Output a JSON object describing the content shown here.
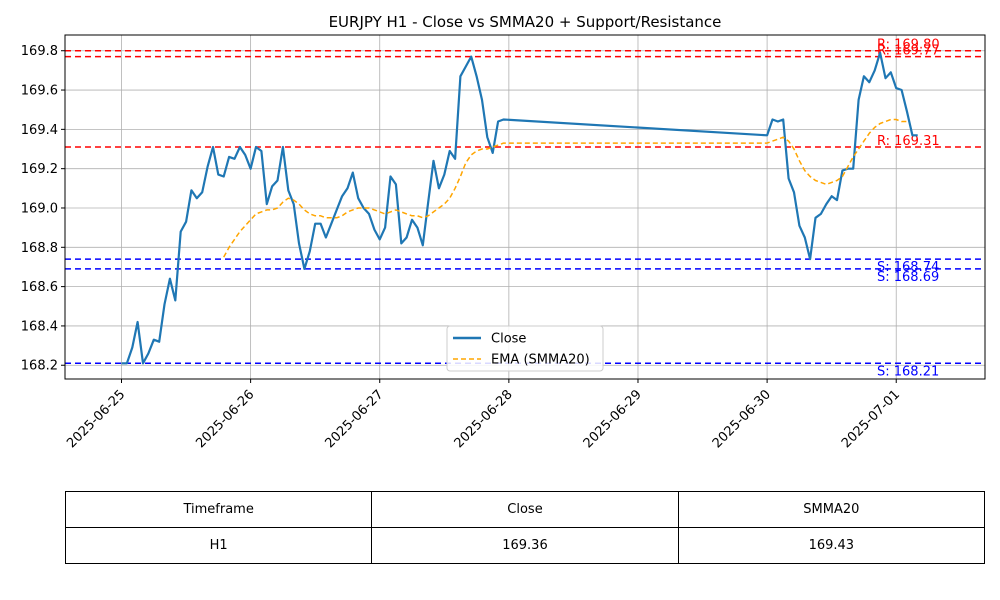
{
  "chart_data": {
    "type": "line",
    "title": "EURJPY H1 - Close vs SMMA20 + Support/Resistance",
    "xlabel": "",
    "ylabel": "",
    "x_ticks": [
      "2025-06-25",
      "2025-06-26",
      "2025-06-27",
      "2025-06-28",
      "2025-06-29",
      "2025-06-30",
      "2025-07-01"
    ],
    "y_ticks": [
      "168.2",
      "168.4",
      "168.6",
      "168.8",
      "169.0",
      "169.2",
      "169.4",
      "169.6",
      "169.8"
    ],
    "xlim": [
      "2025-06-24T13:30",
      "2025-07-01T16:30"
    ],
    "ylim": [
      168.13,
      169.88
    ],
    "grid": true,
    "legend_position": "lower-center",
    "legend": [
      "Close",
      "EMA (SMMA20)"
    ],
    "series": [
      {
        "name": "Close",
        "color": "#1f77b4",
        "style": "solid",
        "points": [
          [
            "2025-06-25T00:00",
            168.21
          ],
          [
            "2025-06-25T01:00",
            168.21
          ],
          [
            "2025-06-25T02:00",
            168.29
          ],
          [
            "2025-06-25T03:00",
            168.42
          ],
          [
            "2025-06-25T04:00",
            168.21
          ],
          [
            "2025-06-25T05:00",
            168.26
          ],
          [
            "2025-06-25T06:00",
            168.33
          ],
          [
            "2025-06-25T07:00",
            168.32
          ],
          [
            "2025-06-25T08:00",
            168.51
          ],
          [
            "2025-06-25T09:00",
            168.64
          ],
          [
            "2025-06-25T10:00",
            168.53
          ],
          [
            "2025-06-25T11:00",
            168.88
          ],
          [
            "2025-06-25T12:00",
            168.93
          ],
          [
            "2025-06-25T13:00",
            169.09
          ],
          [
            "2025-06-25T14:00",
            169.05
          ],
          [
            "2025-06-25T15:00",
            169.08
          ],
          [
            "2025-06-25T16:00",
            169.21
          ],
          [
            "2025-06-25T17:00",
            169.31
          ],
          [
            "2025-06-25T18:00",
            169.17
          ],
          [
            "2025-06-25T19:00",
            169.16
          ],
          [
            "2025-06-25T20:00",
            169.26
          ],
          [
            "2025-06-25T21:00",
            169.25
          ],
          [
            "2025-06-25T22:00",
            169.31
          ],
          [
            "2025-06-25T23:00",
            169.27
          ],
          [
            "2025-06-26T00:00",
            169.2
          ],
          [
            "2025-06-26T01:00",
            169.31
          ],
          [
            "2025-06-26T02:00",
            169.29
          ],
          [
            "2025-06-26T03:00",
            169.02
          ],
          [
            "2025-06-26T04:00",
            169.11
          ],
          [
            "2025-06-26T05:00",
            169.14
          ],
          [
            "2025-06-26T06:00",
            169.31
          ],
          [
            "2025-06-26T07:00",
            169.09
          ],
          [
            "2025-06-26T08:00",
            169.02
          ],
          [
            "2025-06-26T09:00",
            168.82
          ],
          [
            "2025-06-26T10:00",
            168.69
          ],
          [
            "2025-06-26T11:00",
            168.78
          ],
          [
            "2025-06-26T12:00",
            168.92
          ],
          [
            "2025-06-26T13:00",
            168.92
          ],
          [
            "2025-06-26T14:00",
            168.85
          ],
          [
            "2025-06-26T15:00",
            168.92
          ],
          [
            "2025-06-26T16:00",
            168.99
          ],
          [
            "2025-06-26T17:00",
            169.06
          ],
          [
            "2025-06-26T18:00",
            169.1
          ],
          [
            "2025-06-26T19:00",
            169.18
          ],
          [
            "2025-06-26T20:00",
            169.05
          ],
          [
            "2025-06-26T21:00",
            169.0
          ],
          [
            "2025-06-26T22:00",
            168.97
          ],
          [
            "2025-06-26T23:00",
            168.89
          ],
          [
            "2025-06-27T00:00",
            168.84
          ],
          [
            "2025-06-27T01:00",
            168.9
          ],
          [
            "2025-06-27T02:00",
            169.16
          ],
          [
            "2025-06-27T03:00",
            169.12
          ],
          [
            "2025-06-27T04:00",
            168.82
          ],
          [
            "2025-06-27T05:00",
            168.85
          ],
          [
            "2025-06-27T06:00",
            168.94
          ],
          [
            "2025-06-27T07:00",
            168.9
          ],
          [
            "2025-06-27T08:00",
            168.81
          ],
          [
            "2025-06-27T09:00",
            169.03
          ],
          [
            "2025-06-27T10:00",
            169.24
          ],
          [
            "2025-06-27T11:00",
            169.1
          ],
          [
            "2025-06-27T12:00",
            169.17
          ],
          [
            "2025-06-27T13:00",
            169.29
          ],
          [
            "2025-06-27T14:00",
            169.25
          ],
          [
            "2025-06-27T15:00",
            169.67
          ],
          [
            "2025-06-27T16:00",
            169.72
          ],
          [
            "2025-06-27T17:00",
            169.77
          ],
          [
            "2025-06-27T18:00",
            169.67
          ],
          [
            "2025-06-27T19:00",
            169.55
          ],
          [
            "2025-06-27T20:00",
            169.36
          ],
          [
            "2025-06-27T21:00",
            169.28
          ],
          [
            "2025-06-27T22:00",
            169.44
          ],
          [
            "2025-06-27T23:00",
            169.45
          ],
          [
            "2025-06-30T00:00",
            169.37
          ],
          [
            "2025-06-30T01:00",
            169.45
          ],
          [
            "2025-06-30T02:00",
            169.44
          ],
          [
            "2025-06-30T03:00",
            169.45
          ],
          [
            "2025-06-30T04:00",
            169.15
          ],
          [
            "2025-06-30T05:00",
            169.08
          ],
          [
            "2025-06-30T06:00",
            168.91
          ],
          [
            "2025-06-30T07:00",
            168.85
          ],
          [
            "2025-06-30T08:00",
            168.74
          ],
          [
            "2025-06-30T09:00",
            168.95
          ],
          [
            "2025-06-30T10:00",
            168.97
          ],
          [
            "2025-06-30T11:00",
            169.02
          ],
          [
            "2025-06-30T12:00",
            169.06
          ],
          [
            "2025-06-30T13:00",
            169.04
          ],
          [
            "2025-06-30T14:00",
            169.19
          ],
          [
            "2025-06-30T15:00",
            169.2
          ],
          [
            "2025-06-30T16:00",
            169.2
          ],
          [
            "2025-06-30T17:00",
            169.55
          ],
          [
            "2025-06-30T18:00",
            169.67
          ],
          [
            "2025-06-30T19:00",
            169.64
          ],
          [
            "2025-06-30T20:00",
            169.7
          ],
          [
            "2025-06-30T21:00",
            169.79
          ],
          [
            "2025-06-30T22:00",
            169.66
          ],
          [
            "2025-06-30T23:00",
            169.69
          ],
          [
            "2025-07-01T00:00",
            169.61
          ],
          [
            "2025-07-01T01:00",
            169.6
          ],
          [
            "2025-07-01T02:00",
            169.49
          ],
          [
            "2025-07-01T03:00",
            169.37
          ],
          [
            "2025-07-01T04:00",
            169.37
          ]
        ]
      },
      {
        "name": "EMA (SMMA20)",
        "color": "#ffa500",
        "style": "dashed",
        "points": [
          [
            "2025-06-25T19:00",
            168.75
          ],
          [
            "2025-06-25T20:00",
            168.8
          ],
          [
            "2025-06-25T21:00",
            168.84
          ],
          [
            "2025-06-25T22:00",
            168.88
          ],
          [
            "2025-06-25T23:00",
            168.91
          ],
          [
            "2025-06-26T00:00",
            168.94
          ],
          [
            "2025-06-26T01:00",
            168.97
          ],
          [
            "2025-06-26T02:00",
            168.98
          ],
          [
            "2025-06-26T03:00",
            168.99
          ],
          [
            "2025-06-26T04:00",
            168.99
          ],
          [
            "2025-06-26T05:00",
            169.0
          ],
          [
            "2025-06-26T06:00",
            169.03
          ],
          [
            "2025-06-26T07:00",
            169.05
          ],
          [
            "2025-06-26T08:00",
            169.04
          ],
          [
            "2025-06-26T09:00",
            169.02
          ],
          [
            "2025-06-26T10:00",
            168.99
          ],
          [
            "2025-06-26T11:00",
            168.97
          ],
          [
            "2025-06-26T12:00",
            168.96
          ],
          [
            "2025-06-26T13:00",
            168.96
          ],
          [
            "2025-06-26T14:00",
            168.95
          ],
          [
            "2025-06-26T15:00",
            168.95
          ],
          [
            "2025-06-26T16:00",
            168.95
          ],
          [
            "2025-06-26T17:00",
            168.96
          ],
          [
            "2025-06-26T18:00",
            168.98
          ],
          [
            "2025-06-26T19:00",
            168.99
          ],
          [
            "2025-06-26T20:00",
            169.0
          ],
          [
            "2025-06-26T21:00",
            169.0
          ],
          [
            "2025-06-26T22:00",
            169.0
          ],
          [
            "2025-06-26T23:00",
            168.99
          ],
          [
            "2025-06-27T00:00",
            168.98
          ],
          [
            "2025-06-27T01:00",
            168.97
          ],
          [
            "2025-06-27T02:00",
            168.98
          ],
          [
            "2025-06-27T03:00",
            168.99
          ],
          [
            "2025-06-27T04:00",
            168.98
          ],
          [
            "2025-06-27T05:00",
            168.97
          ],
          [
            "2025-06-27T06:00",
            168.96
          ],
          [
            "2025-06-27T07:00",
            168.96
          ],
          [
            "2025-06-27T08:00",
            168.95
          ],
          [
            "2025-06-27T09:00",
            168.96
          ],
          [
            "2025-06-27T10:00",
            168.98
          ],
          [
            "2025-06-27T11:00",
            169.0
          ],
          [
            "2025-06-27T12:00",
            169.02
          ],
          [
            "2025-06-27T13:00",
            169.05
          ],
          [
            "2025-06-27T14:00",
            169.1
          ],
          [
            "2025-06-27T15:00",
            169.16
          ],
          [
            "2025-06-27T16:00",
            169.23
          ],
          [
            "2025-06-27T17:00",
            169.27
          ],
          [
            "2025-06-27T18:00",
            169.29
          ],
          [
            "2025-06-27T19:00",
            169.3
          ],
          [
            "2025-06-27T20:00",
            169.3
          ],
          [
            "2025-06-27T21:00",
            169.31
          ],
          [
            "2025-06-27T22:00",
            169.32
          ],
          [
            "2025-06-27T23:00",
            169.33
          ],
          [
            "2025-06-30T00:00",
            169.33
          ],
          [
            "2025-06-30T01:00",
            169.34
          ],
          [
            "2025-06-30T02:00",
            169.35
          ],
          [
            "2025-06-30T03:00",
            169.36
          ],
          [
            "2025-06-30T04:00",
            169.34
          ],
          [
            "2025-06-30T05:00",
            169.3
          ],
          [
            "2025-06-30T06:00",
            169.24
          ],
          [
            "2025-06-30T07:00",
            169.19
          ],
          [
            "2025-06-30T08:00",
            169.16
          ],
          [
            "2025-06-30T09:00",
            169.14
          ],
          [
            "2025-06-30T10:00",
            169.13
          ],
          [
            "2025-06-30T11:00",
            169.12
          ],
          [
            "2025-06-30T12:00",
            169.13
          ],
          [
            "2025-06-30T13:00",
            169.14
          ],
          [
            "2025-06-30T14:00",
            169.16
          ],
          [
            "2025-06-30T15:00",
            169.21
          ],
          [
            "2025-06-30T16:00",
            169.26
          ],
          [
            "2025-06-30T17:00",
            169.3
          ],
          [
            "2025-06-30T18:00",
            169.34
          ],
          [
            "2025-06-30T19:00",
            169.38
          ],
          [
            "2025-06-30T20:00",
            169.41
          ],
          [
            "2025-06-30T21:00",
            169.43
          ],
          [
            "2025-06-30T22:00",
            169.44
          ],
          [
            "2025-06-30T23:00",
            169.45
          ],
          [
            "2025-07-01T00:00",
            169.45
          ],
          [
            "2025-07-01T01:00",
            169.44
          ],
          [
            "2025-07-01T02:00",
            169.44
          ]
        ]
      }
    ],
    "resistance_levels": [
      {
        "value": 169.8,
        "label": "R: 169.80"
      },
      {
        "value": 169.77,
        "label": "R: 169.77"
      },
      {
        "value": 169.31,
        "label": "R: 169.31"
      }
    ],
    "support_levels": [
      {
        "value": 168.74,
        "label": "S: 168.74"
      },
      {
        "value": 168.69,
        "label": "S: 168.69"
      },
      {
        "value": 168.21,
        "label": "S: 168.21"
      }
    ],
    "resistance_color": "#ff0000",
    "support_color": "#0000ff",
    "table": {
      "headers": [
        "Timeframe",
        "Close",
        "SMMA20"
      ],
      "rows": [
        [
          "H1",
          "169.36",
          "169.43"
        ]
      ]
    }
  }
}
